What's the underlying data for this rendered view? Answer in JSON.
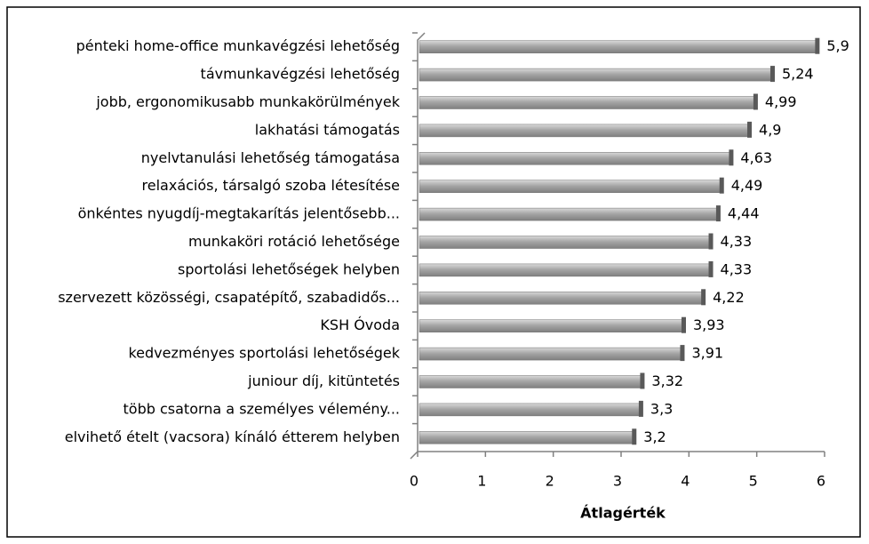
{
  "chart_data": {
    "type": "bar",
    "orientation": "horizontal",
    "x_label": "Átlagérték",
    "categories": [
      "pénteki home-office munkavégzési lehetőség",
      "távmunkavégzési lehetőség",
      "jobb, ergonomikusabb munkakörülmények",
      "lakhatási támogatás",
      "nyelvtanulási lehetőség támogatása",
      "relaxációs, társalgó szoba létesítése",
      "önkéntes nyugdíj-megtakarítás jelentősebb...",
      "munkaköri rotáció lehetősége",
      "sportolási lehetőségek helyben",
      "szervezett közösségi, csapatépítő, szabadidős...",
      "KSH Óvoda",
      "kedvezményes sportolási lehetőségek",
      "juniour díj, kitüntetés",
      "több csatorna a személyes vélemény...",
      "elvihető ételt (vacsora) kínáló étterem helyben"
    ],
    "values": [
      5.9,
      5.24,
      4.99,
      4.9,
      4.63,
      4.49,
      4.44,
      4.33,
      4.33,
      4.22,
      3.93,
      3.91,
      3.32,
      3.3,
      3.2
    ],
    "value_labels": [
      "5,9",
      "5,24",
      "4,99",
      "4,9",
      "4,63",
      "4,49",
      "4,44",
      "4,33",
      "4,33",
      "4,22",
      "3,93",
      "3,91",
      "3,32",
      "3,3",
      "3,2"
    ],
    "color": "#a6a6a6",
    "xlim": [
      0,
      6
    ],
    "xticks": [
      0,
      1,
      2,
      3,
      4,
      5,
      6
    ]
  }
}
